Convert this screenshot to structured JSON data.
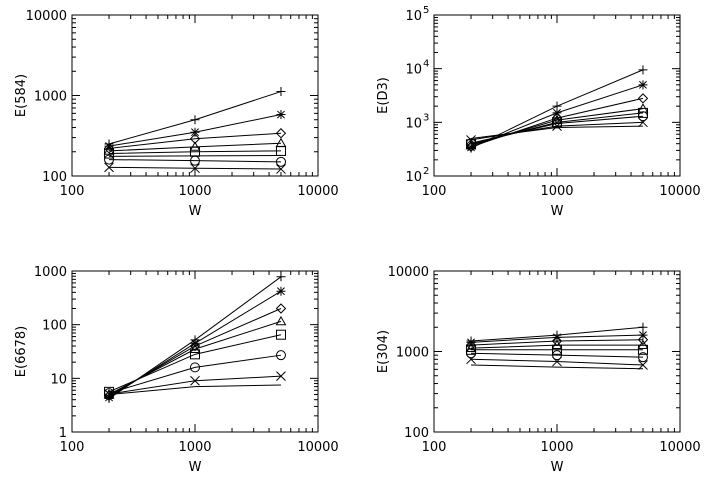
{
  "chart_data": [
    {
      "type": "line",
      "xlabel": "W",
      "ylabel": "E(584)",
      "xscale": "log",
      "yscale": "log",
      "xlim": [
        100,
        10000
      ],
      "ylim": [
        100,
        10000
      ],
      "xticks": [
        "100",
        "1000",
        "10000"
      ],
      "yticks": [
        "100",
        "1000",
        "10000"
      ],
      "x": [
        200,
        1000,
        5000
      ],
      "series": [
        {
          "marker": "plus",
          "values": [
            250,
            500,
            1120
          ]
        },
        {
          "marker": "asterisk",
          "values": [
            235,
            350,
            580
          ]
        },
        {
          "marker": "diamond",
          "values": [
            220,
            290,
            340
          ]
        },
        {
          "marker": "triangle",
          "values": [
            205,
            230,
            255
          ]
        },
        {
          "marker": "square",
          "values": [
            190,
            200,
            205
          ]
        },
        {
          "marker": "circle",
          "values": [
            160,
            155,
            150
          ]
        },
        {
          "marker": "cross",
          "values": [
            128,
            125,
            122
          ]
        },
        {
          "marker": "none",
          "values": [
            175,
            178,
            180
          ]
        }
      ]
    },
    {
      "type": "line",
      "xlabel": "W",
      "ylabel": "E(D3)",
      "xscale": "log",
      "yscale": "log",
      "xlim": [
        100,
        10000
      ],
      "ylim": [
        100,
        100000
      ],
      "xticks": [
        "100",
        "1000",
        "10000"
      ],
      "yticks": [
        "10",
        "10",
        "10",
        "10"
      ],
      "ytick_exponents": [
        "2",
        "3",
        "4",
        "5"
      ],
      "x": [
        200,
        1000,
        5000
      ],
      "series": [
        {
          "marker": "plus",
          "values": [
            330,
            2000,
            9500
          ]
        },
        {
          "marker": "asterisk",
          "values": [
            340,
            1500,
            5000
          ]
        },
        {
          "marker": "diamond",
          "values": [
            350,
            1200,
            2800
          ]
        },
        {
          "marker": "triangle",
          "values": [
            370,
            1100,
            1800
          ]
        },
        {
          "marker": "square",
          "values": [
            390,
            1000,
            1500
          ]
        },
        {
          "marker": "circle",
          "values": [
            410,
            950,
            1300
          ]
        },
        {
          "marker": "cross",
          "values": [
            470,
            850,
            1000
          ]
        },
        {
          "marker": "none",
          "values": [
            500,
            800,
            850
          ]
        }
      ]
    },
    {
      "type": "line",
      "xlabel": "W",
      "ylabel": "E(6678)",
      "xscale": "log",
      "yscale": "log",
      "xlim": [
        100,
        10000
      ],
      "ylim": [
        1,
        1000
      ],
      "xticks": [
        "100",
        "1000",
        "10000"
      ],
      "yticks": [
        "1",
        "10",
        "100",
        "1000"
      ],
      "x": [
        200,
        1000,
        5000
      ],
      "series": [
        {
          "marker": "plus",
          "values": [
            4.2,
            52,
            780
          ]
        },
        {
          "marker": "asterisk",
          "values": [
            4.4,
            45,
            420
          ]
        },
        {
          "marker": "diamond",
          "values": [
            4.7,
            40,
            200
          ]
        },
        {
          "marker": "triangle",
          "values": [
            5.0,
            35,
            115
          ]
        },
        {
          "marker": "square",
          "values": [
            5.6,
            28,
            65
          ]
        },
        {
          "marker": "circle",
          "values": [
            5.3,
            16,
            27
          ]
        },
        {
          "marker": "cross",
          "values": [
            5.1,
            9,
            11
          ]
        },
        {
          "marker": "none",
          "values": [
            5.0,
            7,
            7.5
          ]
        }
      ]
    },
    {
      "type": "line",
      "xlabel": "W",
      "ylabel": "E(304)",
      "xscale": "log",
      "yscale": "log",
      "xlim": [
        100,
        10000
      ],
      "ylim": [
        100,
        10000
      ],
      "xticks": [
        "100",
        "1000",
        "10000"
      ],
      "yticks": [
        "100",
        "1000",
        "10000"
      ],
      "x": [
        200,
        1000,
        5000
      ],
      "series": [
        {
          "marker": "plus",
          "values": [
            1350,
            1600,
            2000
          ]
        },
        {
          "marker": "asterisk",
          "values": [
            1300,
            1500,
            1600
          ]
        },
        {
          "marker": "diamond",
          "values": [
            1200,
            1350,
            1400
          ]
        },
        {
          "marker": "triangle",
          "values": [
            1100,
            1200,
            1200
          ]
        },
        {
          "marker": "square",
          "values": [
            1050,
            1050,
            1050
          ]
        },
        {
          "marker": "circle",
          "values": [
            950,
            900,
            850
          ]
        },
        {
          "marker": "cross",
          "values": [
            800,
            750,
            680
          ]
        },
        {
          "marker": "none",
          "values": [
            680,
            640,
            610
          ]
        }
      ]
    }
  ]
}
